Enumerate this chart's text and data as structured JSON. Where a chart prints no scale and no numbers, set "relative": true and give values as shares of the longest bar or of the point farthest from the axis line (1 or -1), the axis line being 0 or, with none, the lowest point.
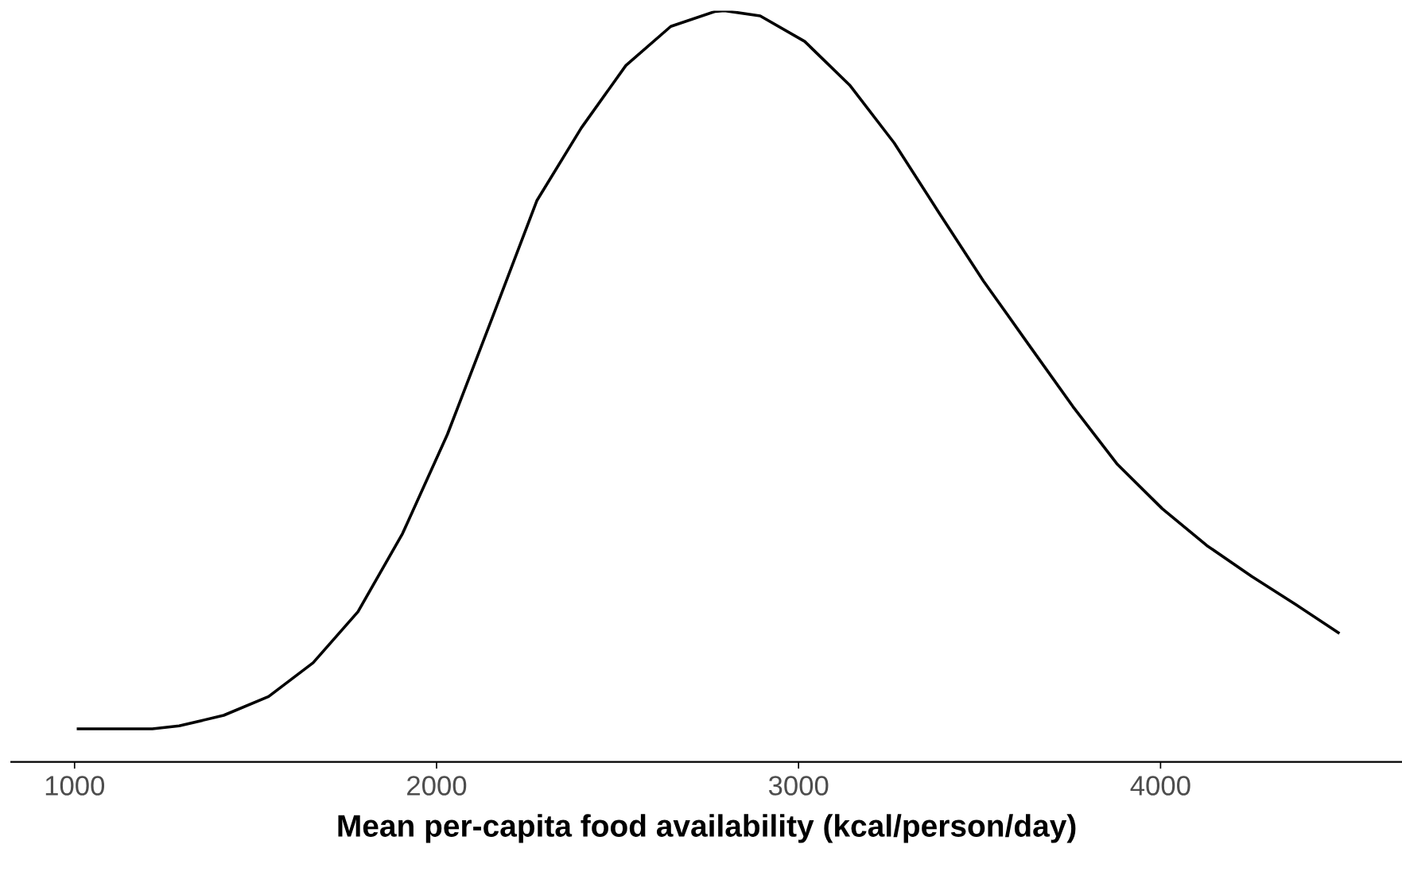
{
  "chart_data": {
    "type": "line",
    "relative": true,
    "xlabel": "Mean per-capita food availability (kcal/person/day)",
    "x": [
      1010,
      1215,
      1289,
      1412,
      1536,
      1659,
      1783,
      1906,
      2030,
      2153,
      2277,
      2400,
      2523,
      2647,
      2770,
      2795,
      2894,
      3017,
      3141,
      3264,
      3388,
      3511,
      3635,
      3758,
      3881,
      4005,
      4128,
      4252,
      4375,
      4491
    ],
    "series": [
      {
        "color": "#000000",
        "values": [
          0.044,
          0.044,
          0.048,
          0.062,
          0.087,
          0.132,
          0.2,
          0.304,
          0.436,
          0.59,
          0.747,
          0.844,
          0.927,
          0.979,
          0.999,
          1.0,
          0.993,
          0.959,
          0.901,
          0.824,
          0.731,
          0.64,
          0.556,
          0.473,
          0.396,
          0.337,
          0.288,
          0.247,
          0.209,
          0.172
        ]
      }
    ],
    "xlim": [
      825,
      4667
    ],
    "xticks": [
      1000,
      2000,
      3000,
      4000
    ],
    "grid": false,
    "legend": false,
    "marker": "none",
    "line_style": "solid"
  }
}
